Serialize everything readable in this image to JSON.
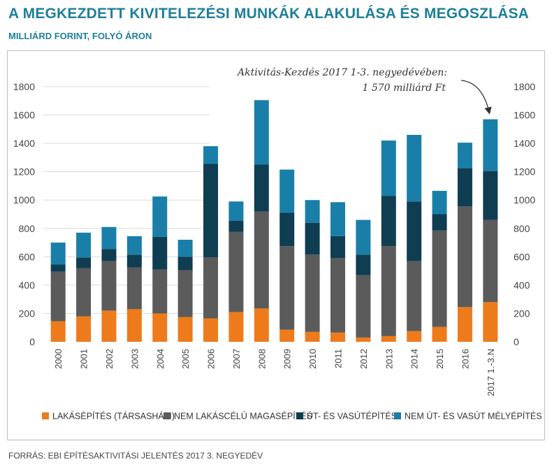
{
  "title": "A MEGKEZDETT KIVITELEZÉSI MUNKÁK ALAKULÁSA ÉS MEGOSZLÁSA",
  "subtitle": "MILLIÁRD FORINT, FOLYÓ ÁRON",
  "source": "FORRÁS: EBI ÉPÍTÉSAKTIVITÁSI JELENTÉS 2017 3. NEGYEDÉV",
  "annotation": {
    "line1": "Aktivitás-Kezdés 2017 1-3. negyedévében:",
    "line2": "1 570 milliárd Ft"
  },
  "chart_data": {
    "type": "bar",
    "stacked": true,
    "categories": [
      "2000",
      "2001",
      "2002",
      "2003",
      "2004",
      "2005",
      "2006",
      "2007",
      "2008",
      "2009",
      "2010",
      "2011",
      "2012",
      "2013",
      "2014",
      "2015",
      "2016",
      "2017 1.-3.N"
    ],
    "yticks": [
      0,
      200,
      400,
      600,
      800,
      1000,
      1200,
      1400,
      1600,
      1800
    ],
    "ylim": [
      0,
      1800
    ],
    "grid": true,
    "y_axis_both_sides": true,
    "legend_position": "bottom",
    "series": [
      {
        "name": "LAKÁSÉPÍTÉS (TÁRSASHÁZI)",
        "color": "#ee7b1b",
        "values": [
          145,
          180,
          220,
          230,
          200,
          175,
          165,
          210,
          235,
          85,
          70,
          65,
          30,
          40,
          75,
          105,
          245,
          280
        ]
      },
      {
        "name": "NEM LAKÁSCÉLÚ MAGASÉPÍTÉS",
        "color": "#5b5b5b",
        "values": [
          350,
          340,
          350,
          295,
          310,
          330,
          430,
          565,
          685,
          590,
          545,
          525,
          440,
          635,
          495,
          680,
          710,
          580
        ]
      },
      {
        "name": "ÚT- ÉS VASÚTÉPÍTÉS",
        "color": "#0f3d52",
        "values": [
          50,
          75,
          85,
          90,
          230,
          95,
          660,
          80,
          330,
          235,
          225,
          155,
          145,
          355,
          420,
          115,
          270,
          345
        ]
      },
      {
        "name": "NEM ÚT- ÉS VASÚT MÉLYÉPÍTÉS",
        "color": "#1a7fa8",
        "values": [
          155,
          175,
          155,
          130,
          285,
          120,
          125,
          135,
          455,
          305,
          160,
          240,
          245,
          390,
          470,
          165,
          180,
          365
        ]
      }
    ]
  }
}
